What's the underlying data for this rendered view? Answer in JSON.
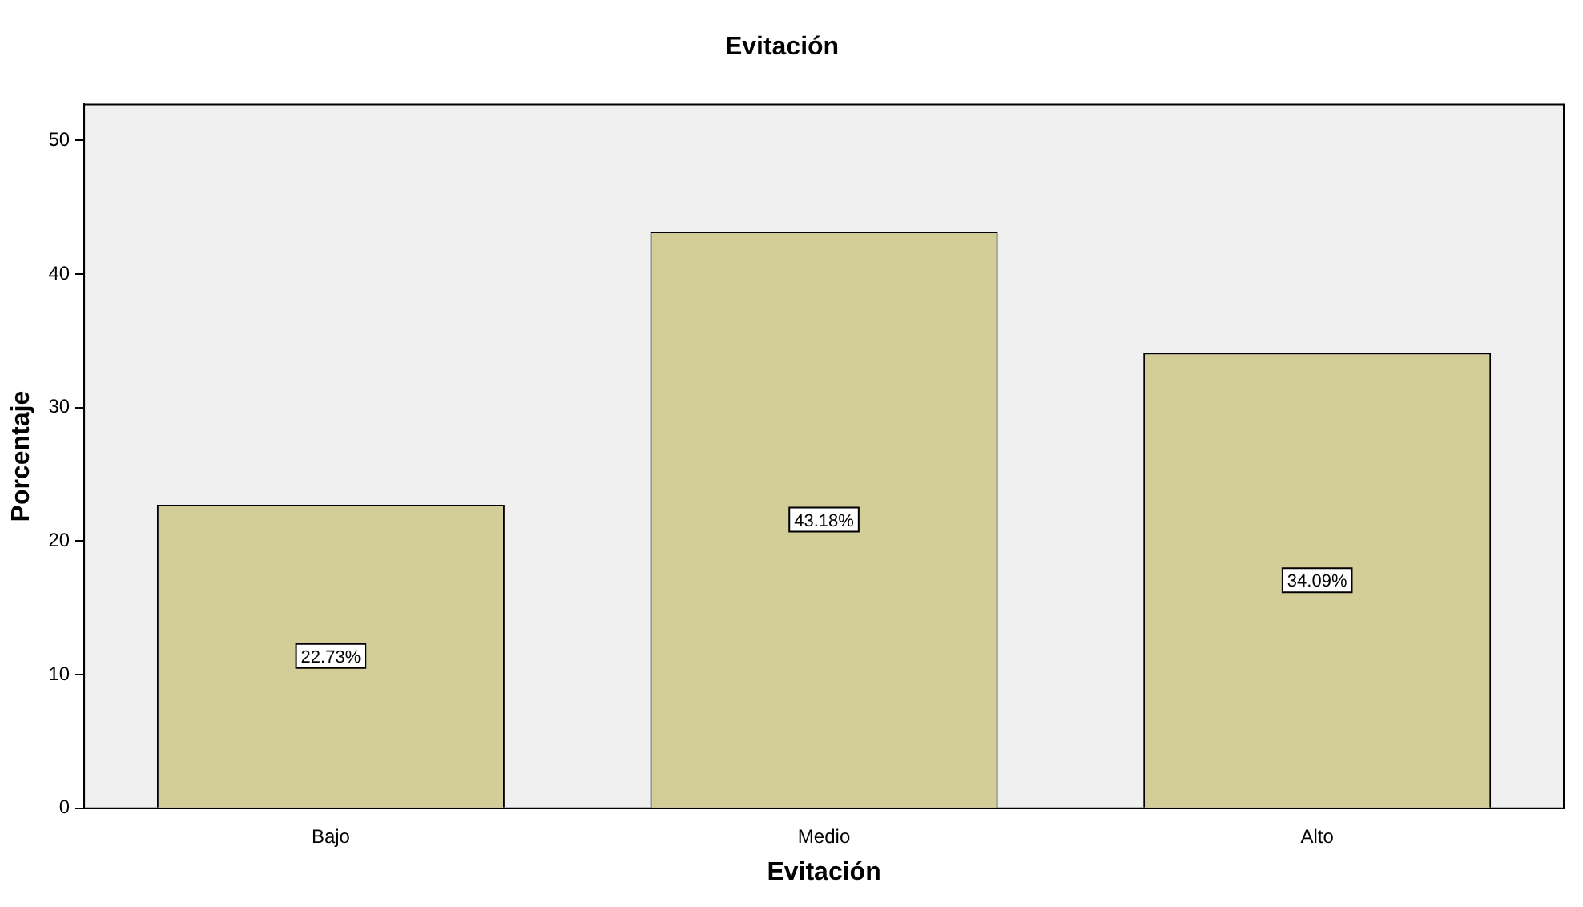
{
  "chart_data": {
    "type": "bar",
    "title": "Evitación",
    "xlabel": "Evitación",
    "ylabel": "Porcentaje",
    "categories": [
      "Bajo",
      "Medio",
      "Alto"
    ],
    "values": [
      22.73,
      43.18,
      34.09
    ],
    "value_labels": [
      "22.73%",
      "43.18%",
      "34.09%"
    ],
    "color": "#d3cd98",
    "ylim": [
      0,
      52.7
    ],
    "yticks": [
      0,
      10,
      20,
      30,
      40,
      50
    ],
    "legend": false
  }
}
